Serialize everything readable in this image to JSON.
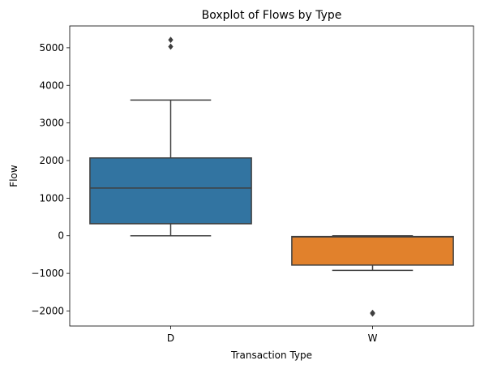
{
  "chart_data": {
    "type": "boxplot",
    "title": "Boxplot of Flows by Type",
    "xlabel": "Transaction Type",
    "ylabel": "Flow",
    "ylim": [
      -2400,
      5580
    ],
    "yticks": [
      -2000,
      -1000,
      0,
      1000,
      2000,
      3000,
      4000,
      5000
    ],
    "ytick_labels": [
      "−2000",
      "−1000",
      "0",
      "1000",
      "2000",
      "3000",
      "4000",
      "5000"
    ],
    "categories": [
      "D",
      "W"
    ],
    "grid": false,
    "boxes": [
      {
        "category": "D",
        "color": "#3274a1",
        "whisker_low": 0,
        "q1": 320,
        "median": 1270,
        "q3": 2070,
        "whisker_high": 3610,
        "outliers": [
          5030,
          5210
        ]
      },
      {
        "category": "W",
        "color": "#e1812c",
        "whisker_low": -920,
        "q1": -780,
        "median": -30,
        "q3": -20,
        "whisker_high": 0,
        "outliers": [
          -2050,
          -2070
        ]
      }
    ]
  }
}
